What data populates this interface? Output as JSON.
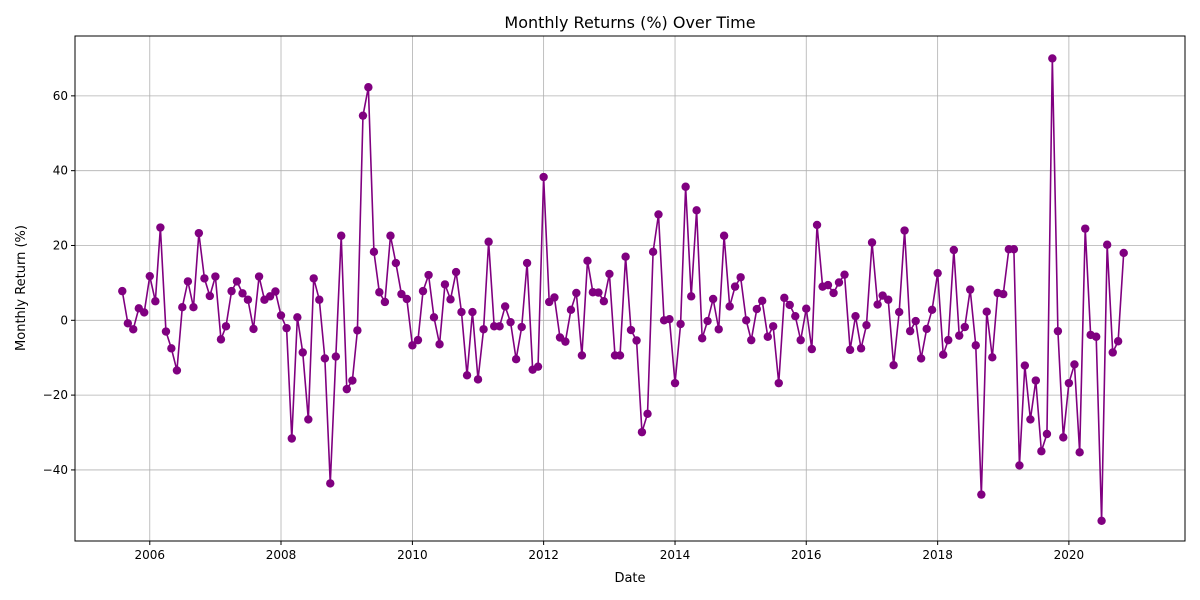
{
  "chart_data": {
    "type": "line",
    "title": "Monthly Returns (%) Over Time",
    "xlabel": "Date",
    "ylabel": "Monthly Return (%)",
    "grid": true,
    "line_color": "#800080",
    "marker": "circle",
    "xlim": [
      "2004-11-11",
      "2021-10-08"
    ],
    "ylim": [
      -59,
      76
    ],
    "x_ticks": [
      "2006",
      "2008",
      "2010",
      "2012",
      "2014",
      "2016",
      "2018",
      "2020"
    ],
    "y_ticks": [
      -40,
      -20,
      0,
      20,
      40,
      60
    ],
    "series": [
      {
        "x": [
          "2005-08",
          "2005-09",
          "2005-10",
          "2005-11",
          "2005-12",
          "2006-01",
          "2006-02",
          "2006-03",
          "2006-04",
          "2006-05",
          "2006-06",
          "2006-07",
          "2006-08",
          "2006-09",
          "2006-10",
          "2006-11",
          "2006-12",
          "2007-01",
          "2007-02",
          "2007-03",
          "2007-04",
          "2007-05",
          "2007-06",
          "2007-07",
          "2007-08",
          "2007-09",
          "2007-10",
          "2007-11",
          "2007-12",
          "2008-01",
          "2008-02",
          "2008-03",
          "2008-04",
          "2008-05",
          "2008-06",
          "2008-07",
          "2008-08",
          "2008-09",
          "2008-10",
          "2008-11",
          "2008-12",
          "2009-01",
          "2009-02",
          "2009-03",
          "2009-04",
          "2009-05",
          "2009-06",
          "2009-07",
          "2009-08",
          "2009-09",
          "2009-10",
          "2009-11",
          "2009-12",
          "2010-01",
          "2010-02",
          "2010-03",
          "2010-04",
          "2010-05",
          "2010-06",
          "2010-07",
          "2010-08",
          "2010-09",
          "2010-10",
          "2010-11",
          "2010-12",
          "2011-01",
          "2011-02",
          "2011-03",
          "2011-04",
          "2011-05",
          "2011-06",
          "2011-07",
          "2011-08",
          "2011-09",
          "2011-10",
          "2011-11",
          "2011-12",
          "2012-01",
          "2012-02",
          "2012-03",
          "2012-04",
          "2012-05",
          "2012-06",
          "2012-07",
          "2012-08",
          "2012-09",
          "2012-10",
          "2012-11",
          "2012-12",
          "2013-01",
          "2013-02",
          "2013-03",
          "2013-04",
          "2013-05",
          "2013-06",
          "2013-07",
          "2013-08",
          "2013-09",
          "2013-10",
          "2013-11",
          "2013-12",
          "2014-01",
          "2014-02",
          "2014-03",
          "2014-04",
          "2014-05",
          "2014-06",
          "2014-07",
          "2014-08",
          "2014-09",
          "2014-10",
          "2014-11",
          "2014-12",
          "2015-01",
          "2015-02",
          "2015-03",
          "2015-04",
          "2015-05",
          "2015-06",
          "2015-07",
          "2015-08",
          "2015-09",
          "2015-10",
          "2015-11",
          "2015-12",
          "2016-01",
          "2016-02",
          "2016-03",
          "2016-04",
          "2016-05",
          "2016-06",
          "2016-07",
          "2016-08",
          "2016-09",
          "2016-10",
          "2016-11",
          "2016-12",
          "2017-01",
          "2017-02",
          "2017-03",
          "2017-04",
          "2017-05",
          "2017-06",
          "2017-07",
          "2017-08",
          "2017-09",
          "2017-10",
          "2017-11",
          "2017-12",
          "2018-01",
          "2018-02",
          "2018-03",
          "2018-04",
          "2018-05",
          "2018-06",
          "2018-07",
          "2018-08",
          "2018-09",
          "2018-10",
          "2018-11",
          "2018-12",
          "2019-01",
          "2019-02",
          "2019-03",
          "2019-04",
          "2019-05",
          "2019-06",
          "2019-07",
          "2019-08",
          "2019-09",
          "2019-10",
          "2019-11",
          "2019-12",
          "2020-01",
          "2020-02",
          "2020-03",
          "2020-04",
          "2020-05",
          "2020-06",
          "2020-07",
          "2020-08",
          "2020-09",
          "2020-10",
          "2020-11"
        ],
        "y": [
          7.8,
          -0.8,
          -2.4,
          3.2,
          2.1,
          11.8,
          5.1,
          24.8,
          -3.0,
          -7.5,
          -13.4,
          3.5,
          10.4,
          3.5,
          23.3,
          11.2,
          6.5,
          11.7,
          -5.1,
          -1.6,
          7.8,
          10.4,
          7.2,
          5.5,
          -2.3,
          11.7,
          5.5,
          6.4,
          7.7,
          1.3,
          -2.1,
          -31.6,
          0.8,
          -8.6,
          -26.5,
          11.2,
          5.5,
          -10.2,
          -43.6,
          -9.7,
          22.6,
          -18.4,
          -16.1,
          -2.7,
          54.7,
          62.3,
          18.3,
          7.5,
          4.9,
          22.6,
          15.3,
          7.0,
          5.7,
          -6.7,
          -5.3,
          7.8,
          12.1,
          0.8,
          -6.4,
          9.6,
          5.6,
          12.9,
          2.2,
          -14.7,
          2.2,
          -15.8,
          -2.4,
          21.0,
          -1.6,
          -1.6,
          3.7,
          -0.5,
          -10.4,
          -1.8,
          15.3,
          -13.2,
          -12.4,
          38.3,
          4.9,
          6.1,
          -4.6,
          -5.7,
          2.8,
          7.3,
          -9.4,
          15.9,
          7.5,
          7.4,
          5.1,
          12.4,
          -9.4,
          -9.4,
          17.0,
          -2.6,
          -5.4,
          -29.9,
          -25.0,
          18.3,
          28.3,
          0.0,
          0.3,
          -16.8,
          -1.0,
          35.7,
          6.4,
          29.4,
          -4.8,
          -0.2,
          5.7,
          -2.4,
          22.6,
          3.7,
          9.0,
          11.5,
          0.0,
          -5.3,
          3.0,
          5.2,
          -4.4,
          -1.6,
          -16.8,
          6.0,
          4.1,
          1.1,
          -5.3,
          3.1,
          -7.7,
          25.5,
          9.0,
          9.4,
          7.3,
          10.1,
          12.2,
          -7.9,
          1.1,
          -7.5,
          -1.3,
          20.8,
          4.2,
          6.6,
          5.5,
          -12.0,
          2.2,
          24.0,
          -2.9,
          -0.2,
          -10.2,
          -2.3,
          2.8,
          12.6,
          -9.2,
          -5.3,
          18.8,
          -4.1,
          -1.8,
          8.2,
          -6.7,
          -46.6,
          2.3,
          -9.9,
          7.3,
          7.0,
          19.0,
          19.0,
          -38.8,
          -12.1,
          -26.5,
          -16.1,
          -35.0,
          -30.4,
          70.0,
          -2.9,
          -31.3,
          -16.8,
          -11.8,
          -35.3,
          24.5,
          -3.9,
          -4.4,
          -53.6,
          20.2,
          -8.6,
          -5.6,
          18.0
        ]
      }
    ]
  }
}
